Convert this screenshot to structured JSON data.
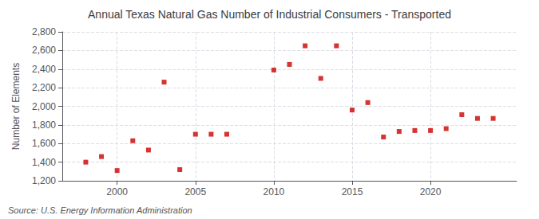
{
  "chart_data": {
    "type": "scatter",
    "title": "Annual Texas Natural Gas Number of Industrial Consumers - Transported",
    "ylabel": "Number of Elements",
    "annotation": "Source: U.S. Energy Information Administration",
    "color": "#cc0000",
    "marker": "square",
    "x": [
      1998,
      1999,
      2000,
      2001,
      2002,
      2003,
      2004,
      2005,
      2006,
      2007,
      2010,
      2011,
      2012,
      2013,
      2014,
      2015,
      2016,
      2017,
      2018,
      2019,
      2020,
      2021,
      2022,
      2023,
      2024
    ],
    "values": [
      1400,
      1460,
      1310,
      1630,
      1530,
      2260,
      1320,
      1700,
      1700,
      1700,
      2390,
      2450,
      2650,
      2300,
      2650,
      1960,
      2040,
      1670,
      1730,
      1740,
      1740,
      1760,
      1910,
      1870,
      1870
    ],
    "xlim": [
      1996.5,
      2025.5
    ],
    "xticks": [
      2000,
      2005,
      2010,
      2015,
      2020
    ],
    "ylim": [
      1200,
      2800
    ],
    "yticks": [
      {
        "value": 1200,
        "label": "1,200"
      },
      {
        "value": 1400,
        "label": "1,400"
      },
      {
        "value": 1600,
        "label": "1,600"
      },
      {
        "value": 1800,
        "label": "1,800"
      },
      {
        "value": 2000,
        "label": "2,000"
      },
      {
        "value": 2200,
        "label": "2,200"
      },
      {
        "value": 2400,
        "label": "2,400"
      },
      {
        "value": 2600,
        "label": "2,600"
      },
      {
        "value": 2800,
        "label": "2,800"
      }
    ],
    "grid": true
  }
}
